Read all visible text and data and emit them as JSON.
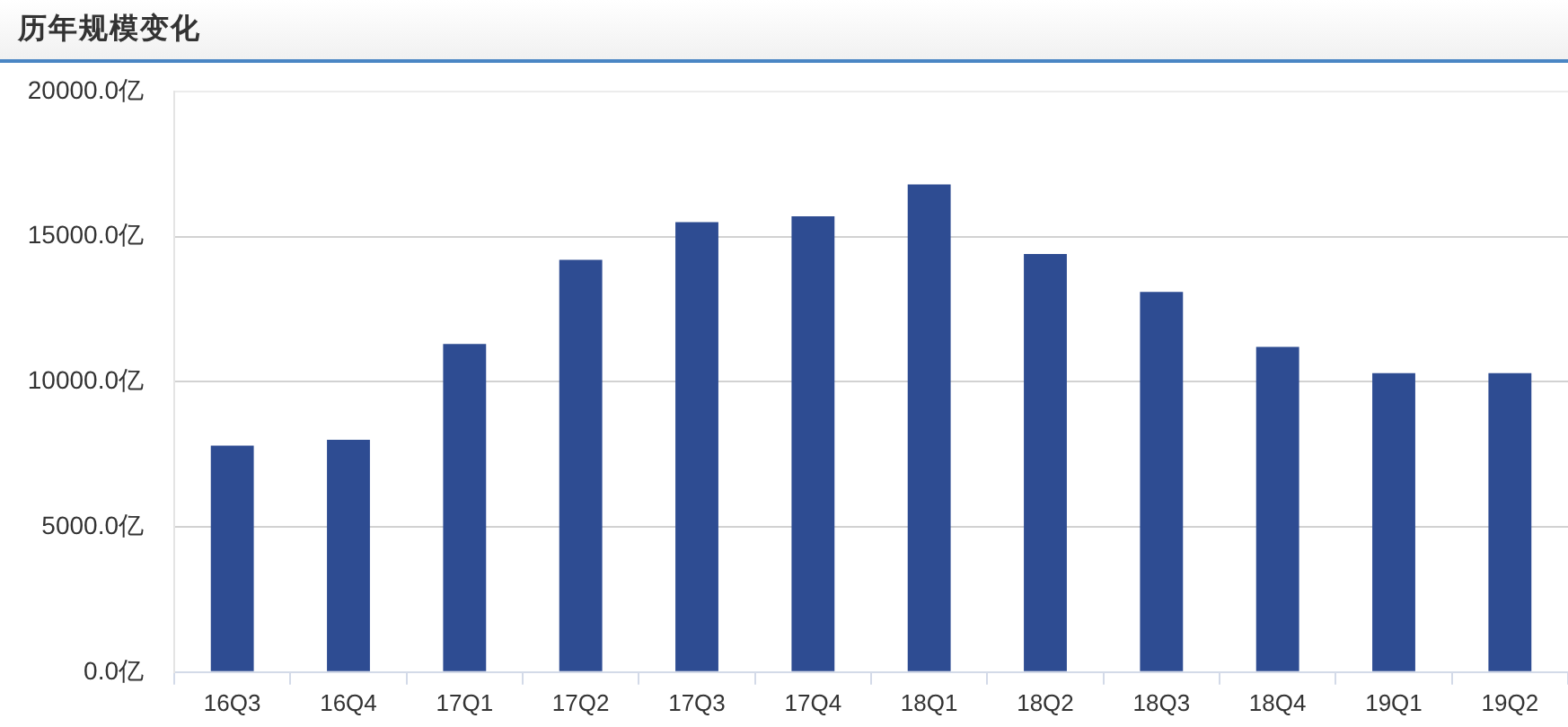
{
  "chart_data": {
    "type": "bar",
    "title": "历年规模变化",
    "categories": [
      "16Q3",
      "16Q4",
      "17Q1",
      "17Q2",
      "17Q3",
      "17Q4",
      "18Q1",
      "18Q2",
      "18Q3",
      "18Q4",
      "19Q1",
      "19Q2"
    ],
    "values": [
      7800,
      8000,
      11300,
      14200,
      15500,
      15700,
      16800,
      14400,
      13100,
      11200,
      10300,
      10300
    ],
    "color": "#2e4c92",
    "ylim": [
      0,
      20000
    ],
    "yticks": [
      {
        "value": 0,
        "label": "0.0亿"
      },
      {
        "value": 5000,
        "label": "5000.0亿"
      },
      {
        "value": 10000,
        "label": "10000.0亿"
      },
      {
        "value": 15000,
        "label": "15000.0亿"
      },
      {
        "value": 20000,
        "label": "20000.0亿"
      }
    ],
    "grid": "y"
  }
}
